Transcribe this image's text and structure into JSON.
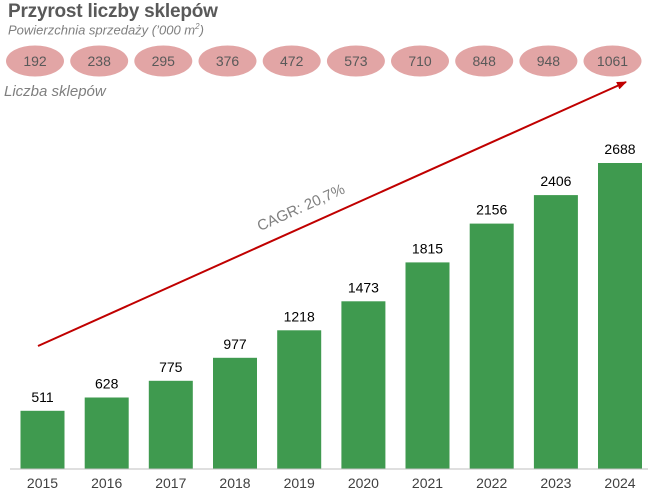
{
  "chart_data": {
    "type": "bar",
    "title": "Przyrost liczby sklepów",
    "subtitle_prefix": "Powierzchnia sprzedaży (’000 m",
    "subtitle_sup": "2",
    "subtitle_suffix": ")",
    "categories": [
      "2015",
      "2016",
      "2017",
      "2018",
      "2019",
      "2020",
      "2021",
      "2022",
      "2023",
      "2024"
    ],
    "series": [
      {
        "name": "Liczba sklepów",
        "values": [
          511,
          628,
          775,
          977,
          1218,
          1473,
          1815,
          2156,
          2406,
          2688
        ]
      }
    ],
    "sales_area": [
      192,
      238,
      295,
      376,
      472,
      573,
      710,
      848,
      948,
      1061
    ],
    "annotation": "CAGR: 20,7%",
    "ylim": [
      0,
      2688
    ],
    "grid": false,
    "colors": {
      "bar": "#3f9a4f",
      "ellipse": "#e2a5a5",
      "arrow": "#c00000",
      "axis": "#bfbfbf"
    }
  }
}
